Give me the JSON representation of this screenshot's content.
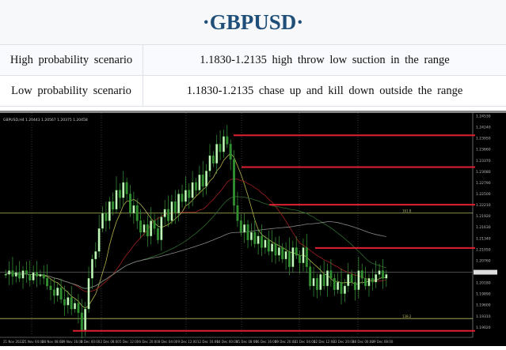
{
  "header": {
    "title": "·GBPUSD·",
    "title_color": "#1f4e79"
  },
  "scenarios": [
    {
      "label": "High probability scenario",
      "text": "1.1830-1.2135  high  throw low  suction  in  the range"
    },
    {
      "label": "Low  probability  scenario",
      "text": "1.1830-1.2135  chase  up  and  kill  down  outside  the  range"
    }
  ],
  "chart_data": {
    "type": "candlestick",
    "symbol_info": "GBPUSD,H4  1.20443  1.20567  1.20375  1.20458",
    "ylim": [
      1.188,
      1.2453
    ],
    "y_ticks": [
      "1.24530",
      "1.24240",
      "1.23950",
      "1.23660",
      "1.23370",
      "1.23080",
      "1.22790",
      "1.22500",
      "1.22210",
      "1.21920",
      "1.21630",
      "1.21340",
      "1.21050",
      "1.20760",
      "1.20470",
      "1.20180",
      "1.19890",
      "1.19600",
      "1.19310",
      "1.19020"
    ],
    "current_price": "1.20458",
    "x_ticks": [
      "21 Nov 2022",
      "25 Nov 04:00",
      "28 Nov 08:00",
      "29 Nov 16:00",
      "1 Dec 00:00",
      "2 Dec 08:00",
      "5 Dec 12:00",
      "6 Dec 20:00",
      "8 Dec 04:00",
      "9 Dec 12:00",
      "12 Dec 16:00",
      "14 Dec 00:00",
      "15 Dec 08:00",
      "16 Dec 16:00",
      "19 Dec 20:00",
      "21 Dec 04:00",
      "22 Dec 12:00",
      "23 Dec 20:00",
      "28 Dec 00:00",
      "29 Dec 08:00"
    ],
    "closes": [
      1.204,
      1.205,
      1.2035,
      1.2045,
      1.203,
      1.205,
      1.204,
      1.2025,
      1.2045,
      1.2035,
      1.204,
      1.203,
      1.201,
      1.2,
      1.1985,
      1.2005,
      1.1975,
      1.196,
      1.198,
      1.195,
      1.1965,
      1.194,
      1.1895,
      1.195,
      1.203,
      1.208,
      1.21,
      1.216,
      1.22,
      1.218,
      1.223,
      1.221,
      1.226,
      1.224,
      1.228,
      1.225,
      1.22,
      1.222,
      1.218,
      1.215,
      1.217,
      1.214,
      1.218,
      1.216,
      1.213,
      1.219,
      1.221,
      1.218,
      1.223,
      1.22,
      1.225,
      1.223,
      1.226,
      1.224,
      1.228,
      1.226,
      1.23,
      1.227,
      1.231,
      1.235,
      1.233,
      1.238,
      1.236,
      1.24,
      1.238,
      1.234,
      1.222,
      1.218,
      1.215,
      1.217,
      1.213,
      1.215,
      1.212,
      1.214,
      1.211,
      1.213,
      1.21,
      1.212,
      1.209,
      1.211,
      1.208,
      1.21,
      1.206,
      1.211,
      1.209,
      1.207,
      1.211,
      1.206,
      1.201,
      1.203,
      1.2,
      1.204,
      1.201,
      1.205,
      1.203,
      1.2,
      1.202,
      1.199,
      1.201,
      1.204,
      1.202,
      1.2,
      1.205,
      1.203,
      1.201,
      1.203,
      1.202,
      1.204,
      1.205,
      1.203,
      1.204
    ],
    "levels": [
      1.2403,
      1.232,
      1.2222,
      1.2109,
      1.1893
    ],
    "fib_lines": [
      {
        "label": "161.8",
        "price": 1.22
      },
      {
        "label": "138.2",
        "price": 1.1925
      }
    ],
    "moving_averages": [
      {
        "period": 8,
        "color": "#b5b34a"
      },
      {
        "period": 20,
        "color": "#a02020"
      },
      {
        "period": 40,
        "color": "#2e6b2e"
      },
      {
        "period": 70,
        "color": "#888888"
      }
    ],
    "colors": {
      "up": "#c8f5c0",
      "down": "#2f8f2f",
      "level": "#e02030",
      "fib": "#b8b860",
      "background": "#000000"
    }
  }
}
